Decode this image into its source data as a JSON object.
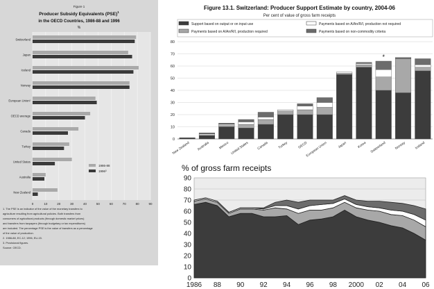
{
  "chart_data": [
    {
      "type": "bar",
      "orientation": "horizontal",
      "figure_label": "Figure 1",
      "title": "Producer Subsidy Equivalents (PSE)",
      "title_sup": "1",
      "subtitle": "in the OECD Countries, 1986-88 and 1996",
      "unit": "%",
      "categories": [
        "Switzerland",
        "Japan",
        "Iceland",
        "Norway",
        "European Union²",
        "OECD average",
        "Canada",
        "Turkey",
        "United States",
        "Australia",
        "New Zealand"
      ],
      "series": [
        {
          "name": "1986-88",
          "values": [
            79,
            73,
            81,
            74,
            48,
            44,
            35,
            28,
            30,
            10,
            19
          ],
          "color": "#a9a9a9"
        },
        {
          "name": "1996³",
          "values": [
            78,
            76,
            77,
            74,
            49,
            40,
            27,
            24,
            17,
            9,
            4
          ],
          "color": "#3a3a3a"
        }
      ],
      "xlim": [
        0,
        90
      ],
      "xticks": [
        "0",
        "10",
        "20",
        "30",
        "40",
        "50",
        "60",
        "70",
        "80",
        "90"
      ],
      "notes": [
        "1. The PSE is an indicator of the value of the monetary transfers to",
        "agriculture resulting from agricultural policies. Both transfers from",
        "consumers of agricultural products (through domestic market prices)",
        "and transfers from taxpayers (through budgetary or tax expenditures)",
        "are included. The percentage PSE is the value of transfers as a percentage",
        "of the value of production.",
        "2. 1986-88, EC-12; 1996, EU-15.",
        "3. Provisional figures.",
        "Source: OECD."
      ]
    },
    {
      "type": "bar",
      "stacked": true,
      "title": "Figure 13.1. Switzerland: Producer Support Estimate by country, 2004-06",
      "subtitle": "Per cent of value of gross farm receipts",
      "categories": [
        "New Zealand",
        "Australia",
        "Mexico",
        "United States",
        "Canada",
        "Turkey",
        "OECD",
        "European Union",
        "Japan",
        "Korea",
        "Switzerland",
        "Norway",
        "Iceland"
      ],
      "highlight": "Switzerland",
      "highlight_marker": "*",
      "series": [
        {
          "name": "Support based on output or on input use",
          "values": [
            1,
            3,
            10,
            9,
            12,
            20,
            20,
            20,
            53,
            59,
            40,
            38,
            56
          ],
          "color": "#3c3c3c"
        },
        {
          "name": "Payments based on A/An/R/I, production required",
          "values": [
            0,
            0,
            1,
            3,
            4,
            3,
            4,
            6,
            1,
            2,
            11,
            28,
            3
          ],
          "color": "#a8a8a8"
        },
        {
          "name": "Payments based on A/An/R/I, production not required",
          "values": [
            0,
            1,
            1,
            2,
            2,
            1,
            3,
            4,
            1,
            1,
            6,
            0,
            2
          ],
          "color": "#ffffff"
        },
        {
          "name": "Payments based on non-commodity criteria",
          "values": [
            0,
            1,
            1,
            2,
            4,
            0,
            2,
            4,
            0,
            1,
            7,
            1,
            5
          ],
          "color": "#6c6c6c"
        }
      ],
      "ylim": [
        0,
        80
      ],
      "yticks": [
        "0",
        "10",
        "20",
        "30",
        "40",
        "50",
        "60",
        "70",
        "80"
      ]
    },
    {
      "type": "area",
      "stacked": true,
      "title": "% of gross farm receipts",
      "x": [
        "1986",
        "1987",
        "1988",
        "1989",
        "1990",
        "1991",
        "1992",
        "1993",
        "1994",
        "1995",
        "1996",
        "1997",
        "1998",
        "1999",
        "2000",
        "2001",
        "2002",
        "2003",
        "2004",
        "2005",
        "2006"
      ],
      "series": [
        {
          "name": "Support based on output or on input use",
          "values": [
            66,
            68,
            65,
            55,
            58,
            58,
            55,
            55,
            56,
            48,
            52,
            53,
            55,
            61,
            55,
            52,
            50,
            47,
            45,
            40,
            34
          ],
          "color": "#3c3c3c"
        },
        {
          "name": "Payments based on A/An/R/I, production required",
          "values": [
            3,
            3,
            3,
            3,
            4,
            4,
            6,
            8,
            6,
            10,
            9,
            8,
            8,
            7,
            8,
            9,
            10,
            10,
            11,
            12,
            12
          ],
          "color": "#a8a8a8"
        },
        {
          "name": "Payments based on A/An/R/I, production not required",
          "values": [
            1,
            1,
            1,
            1,
            1,
            1,
            1,
            2,
            3,
            4,
            4,
            5,
            4,
            3,
            3,
            3,
            3,
            4,
            4,
            5,
            6
          ],
          "color": "#ffffff"
        },
        {
          "name": "Payments based on non-commodity criteria",
          "values": [
            0,
            0,
            0,
            0,
            0,
            0,
            1,
            3,
            5,
            6,
            5,
            4,
            3,
            3,
            4,
            5,
            6,
            7,
            7,
            8,
            10
          ],
          "color": "#6c6c6c"
        }
      ],
      "ylim": [
        0,
        90
      ],
      "yticks": [
        "0",
        "10",
        "20",
        "30",
        "40",
        "50",
        "60",
        "70",
        "80",
        "90"
      ],
      "xticks": [
        "1986",
        "88",
        "90",
        "92",
        "94",
        "96",
        "98",
        "2000",
        "02",
        "04",
        "06"
      ]
    }
  ]
}
